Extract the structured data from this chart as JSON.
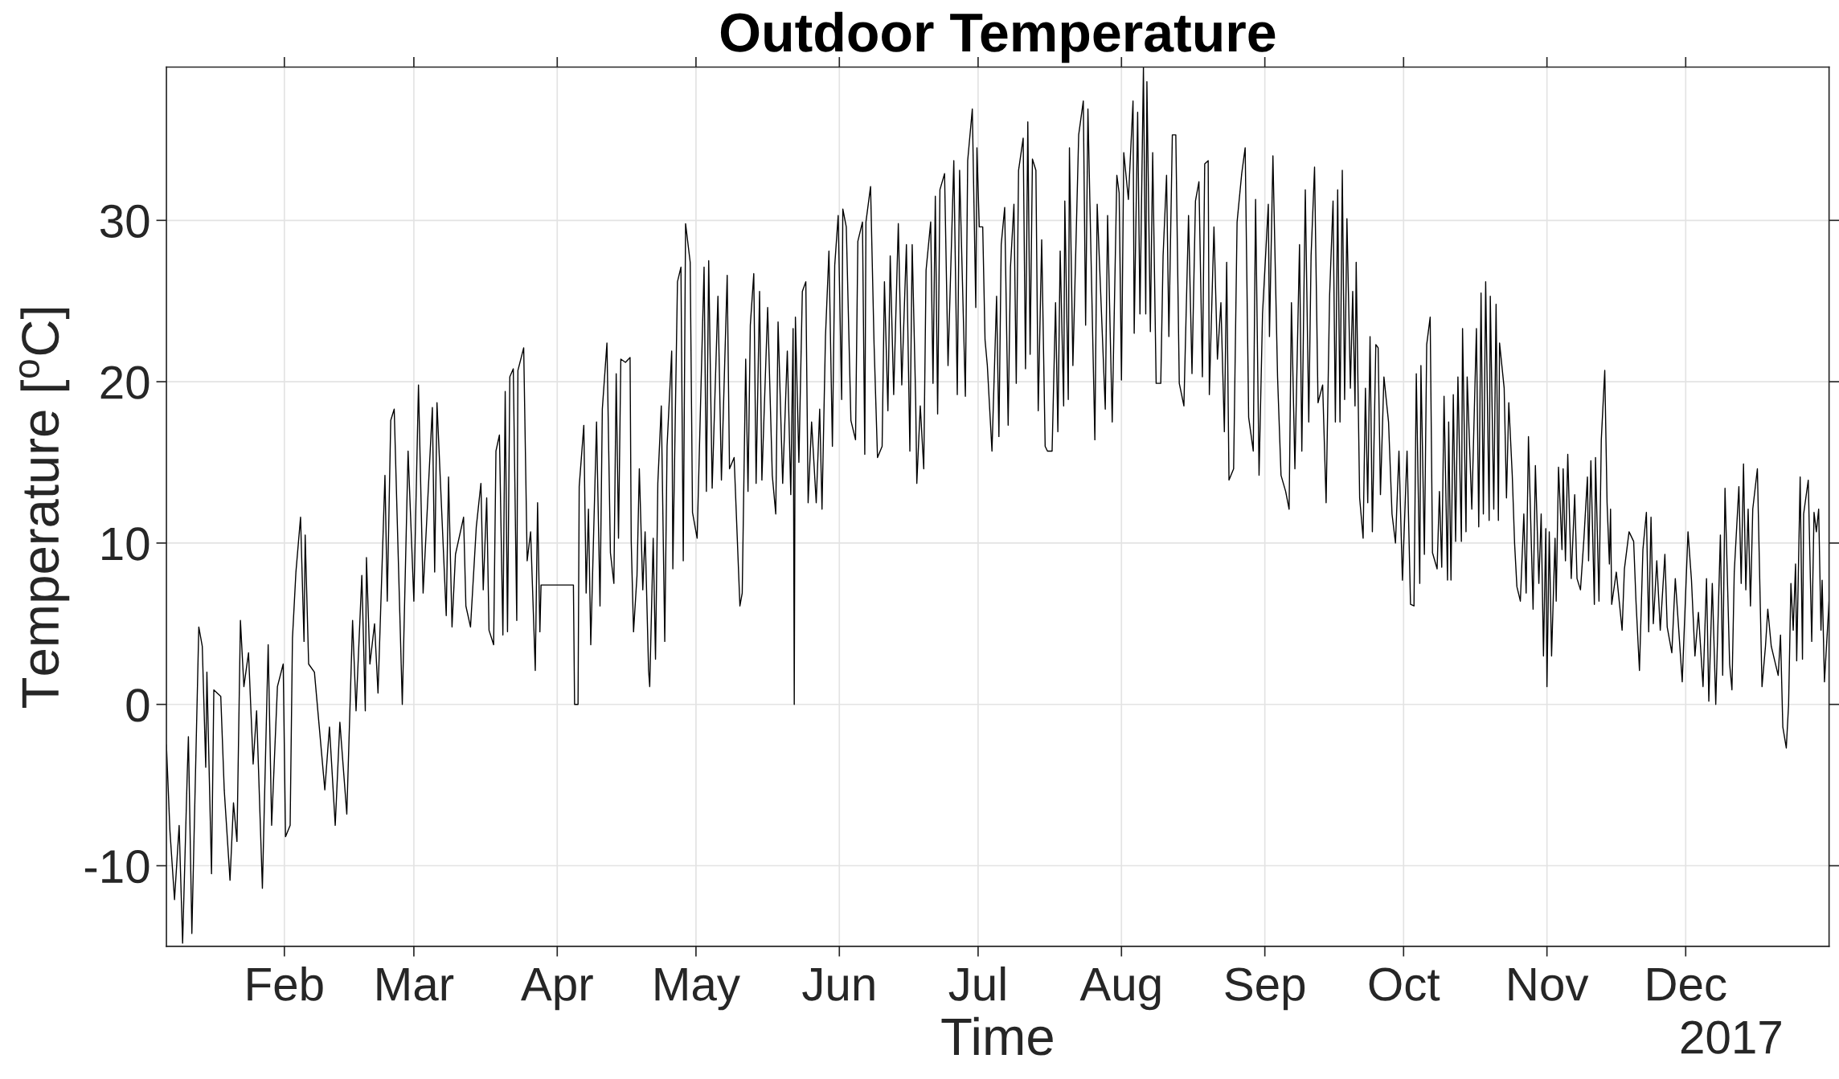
{
  "chart_data": {
    "type": "line",
    "title": "Outdoor Temperature",
    "xlabel": "Time",
    "ylabel": "Temperature [$^{o}$C]",
    "annotations": [
      "2017"
    ],
    "xlim": [
      "2017-01-06T12:00",
      "2018-01-01T00:00"
    ],
    "xticks": [
      {
        "value": "2017-02-01",
        "label": "Feb"
      },
      {
        "value": "2017-03-01",
        "label": "Mar"
      },
      {
        "value": "2017-04-01",
        "label": "Apr"
      },
      {
        "value": "2017-05-01",
        "label": "May"
      },
      {
        "value": "2017-06-01",
        "label": "Jun"
      },
      {
        "value": "2017-07-01",
        "label": "Jul"
      },
      {
        "value": "2017-08-01",
        "label": "Aug"
      },
      {
        "value": "2017-09-01",
        "label": "Sep"
      },
      {
        "value": "2017-10-01",
        "label": "Oct"
      },
      {
        "value": "2017-11-01",
        "label": "Nov"
      },
      {
        "value": "2017-12-01",
        "label": "Dec"
      }
    ],
    "ylim": [
      -15,
      39.5
    ],
    "yticks": [
      -10,
      0,
      10,
      20,
      30
    ],
    "grid": true,
    "line_style": "solid",
    "x": [
      "2017-01-06T12:00",
      "2017-01-07T06:00",
      "2017-01-08T06:00",
      "2017-01-09T06:00",
      "2017-01-10T00:00",
      "2017-01-11T00:00",
      "2017-01-11T06:00",
      "2017-01-12T00:00",
      "2017-01-13T12:00",
      "2017-01-14T06:00",
      "2017-01-15T00:00",
      "2017-01-15T06:00",
      "2017-01-16T06:00",
      "2017-01-16T18:00",
      "2017-01-18T06:00",
      "2017-01-19T00:00",
      "2017-01-20T06:00",
      "2017-01-21T00:00",
      "2017-01-21T18:00",
      "2017-01-22T12:00",
      "2017-01-23T06:00",
      "2017-01-24T06:00",
      "2017-01-25T06:00",
      "2017-01-26T00:00",
      "2017-01-27T06:00",
      "2017-01-28T12:00",
      "2017-01-29T06:00",
      "2017-01-30T12:00",
      "2017-01-31T18:00",
      "2017-02-01T06:00",
      "2017-02-02T06:00",
      "2017-02-02T18:00",
      "2017-02-03T12:00",
      "2017-02-04T12:00",
      "2017-02-05T06:00",
      "2017-02-05T12:00",
      "2017-02-06T06:00",
      "2017-02-07T12:00",
      "2017-02-09T18:00",
      "2017-02-10T18:00",
      "2017-02-12T00:00",
      "2017-02-13T00:00",
      "2017-02-14T12:00",
      "2017-02-15T18:00",
      "2017-02-16T12:00",
      "2017-02-17T18:00",
      "2017-02-18T12:00",
      "2017-02-18T18:00",
      "2017-02-19T12:00",
      "2017-02-20T12:00",
      "2017-02-21T06:00",
      "2017-02-22T18:00",
      "2017-02-23T06:00",
      "2017-02-24T00:00",
      "2017-02-24T18:00",
      "2017-02-26T12:00",
      "2017-02-27T18:00",
      "2017-03-01T00:00",
      "2017-03-02T00:00",
      "2017-03-03T00:00",
      "2017-03-05T00:00",
      "2017-03-05T12:00",
      "2017-03-06T00:00",
      "2017-03-08T00:00",
      "2017-03-08T12:00",
      "2017-03-09T06:00",
      "2017-03-10T00:00",
      "2017-03-11T18:00",
      "2017-03-12T06:00",
      "2017-03-13T06:00",
      "2017-03-14T12:00",
      "2017-03-15T12:00",
      "2017-03-16T00:00",
      "2017-03-16T18:00",
      "2017-03-17T06:00",
      "2017-03-18T06:00",
      "2017-03-18T18:00",
      "2017-03-19T12:00",
      "2017-03-20T06:00",
      "2017-03-20T18:00",
      "2017-03-21T06:00",
      "2017-03-21T18:00",
      "2017-03-22T12:00",
      "2017-03-23T06:00",
      "2017-03-23T12:00",
      "2017-03-24T18:00",
      "2017-03-25T12:00",
      "2017-03-26T06:00",
      "2017-03-27T00:00",
      "2017-03-27T06:00",
      "2017-03-27T18:00",
      "2017-03-28T06:00",
      "2017-03-28T12:00",
      "2017-04-04T12:00",
      "2017-04-04T18:00",
      "2017-04-05T12:00",
      "2017-04-05T18:00",
      "2017-04-06T18:00",
      "2017-04-07T06:00",
      "2017-04-07T18:00",
      "2017-04-08T06:00",
      "2017-04-09T12:00",
      "2017-04-10T06:00",
      "2017-04-10T18:00",
      "2017-04-11T18:00",
      "2017-04-12T12:00",
      "2017-04-13T06:00",
      "2017-04-13T18:00",
      "2017-04-14T06:00",
      "2017-04-14T18:00",
      "2017-04-15T18:00",
      "2017-04-16T18:00",
      "2017-04-17T00:00",
      "2017-04-17T12:00",
      "2017-04-18T06:00",
      "2017-04-18T18:00",
      "2017-04-19T12:00",
      "2017-04-20T00:00",
      "2017-04-20T18:00",
      "2017-04-21T00:00",
      "2017-04-21T18:00",
      "2017-04-22T06:00",
      "2017-04-22T18:00",
      "2017-04-23T12:00",
      "2017-04-24T06:00",
      "2017-04-24T18:00",
      "2017-04-25T18:00",
      "2017-04-26T00:00",
      "2017-04-27T00:00",
      "2017-04-27T18:00",
      "2017-04-28T06:00",
      "2017-04-28T18:00",
      "2017-04-29T18:00",
      "2017-04-30T06:00",
      "2017-05-01T06:00",
      "2017-05-02T18:00",
      "2017-05-03T06:00",
      "2017-05-03T18:00",
      "2017-05-04T12:00",
      "2017-05-05T18:00",
      "2017-05-06T12:00",
      "2017-05-07T18:00",
      "2017-05-08T06:00",
      "2017-05-09T06:00",
      "2017-05-10T12:00",
      "2017-05-11T00:00",
      "2017-05-11T18:00",
      "2017-05-12T06:00",
      "2017-05-12T18:00",
      "2017-05-13T12:00",
      "2017-05-14T00:00",
      "2017-05-14T18:00",
      "2017-05-15T06:00",
      "2017-05-16T12:00",
      "2017-05-17T12:00",
      "2017-05-18T06:00",
      "2017-05-18T18:00",
      "2017-05-19T18:00",
      "2017-05-20T18:00",
      "2017-05-21T12:00",
      "2017-05-22T00:00",
      "2017-05-22T06:00",
      "2017-05-22T12:00",
      "2017-05-23T06:00",
      "2017-05-24T00:00",
      "2017-05-24T18:00",
      "2017-05-25T06:00",
      "2017-05-26T00:00",
      "2017-05-27T00:00",
      "2017-05-27T18:00",
      "2017-05-28T06:00",
      "2017-05-29T00:00",
      "2017-05-29T18:00",
      "2017-05-30T12:00",
      "2017-05-31T00:00",
      "2017-05-31T18:00",
      "2017-06-01T12:00",
      "2017-06-01T18:00",
      "2017-06-02T12:00",
      "2017-06-03T12:00",
      "2017-06-04T12:00",
      "2017-06-05T00:00",
      "2017-06-06T00:00",
      "2017-06-06T12:00",
      "2017-06-06T18:00",
      "2017-06-07T18:00",
      "2017-06-08T12:00",
      "2017-06-09T06:00",
      "2017-06-10T06:00",
      "2017-06-10T18:00",
      "2017-06-11T12:00",
      "2017-06-12T00:00",
      "2017-06-12T18:00",
      "2017-06-13T18:00",
      "2017-06-14T12:00",
      "2017-06-15T12:00",
      "2017-06-16T06:00",
      "2017-06-16T18:00",
      "2017-06-17T12:00",
      "2017-06-17T18:00",
      "2017-06-18T12:00",
      "2017-06-19T06:00",
      "2017-06-19T18:00",
      "2017-06-20T18:00",
      "2017-06-21T06:00",
      "2017-06-21T18:00",
      "2017-06-22T06:00",
      "2017-06-22T18:00",
      "2017-06-23T18:00",
      "2017-06-24T12:00",
      "2017-06-25T18:00",
      "2017-06-26T12:00",
      "2017-06-27T00:00",
      "2017-06-28T06:00",
      "2017-06-28T18:00",
      "2017-06-29T18:00",
      "2017-06-30T12:00",
      "2017-06-30T18:00",
      "2017-07-01T06:00",
      "2017-07-02T00:00",
      "2017-07-02T12:00",
      "2017-07-03T00:00",
      "2017-07-04T00:00",
      "2017-07-05T00:00",
      "2017-07-05T12:00",
      "2017-07-06T00:00",
      "2017-07-06T18:00",
      "2017-07-07T12:00",
      "2017-07-08T00:00",
      "2017-07-08T18:00",
      "2017-07-09T06:00",
      "2017-07-09T18:00",
      "2017-07-10T18:00",
      "2017-07-11T06:00",
      "2017-07-11T18:00",
      "2017-07-12T06:00",
      "2017-07-12T18:00",
      "2017-07-13T12:00",
      "2017-07-14T00:00",
      "2017-07-14T18:00",
      "2017-07-15T12:00",
      "2017-07-16T00:00",
      "2017-07-17T00:00",
      "2017-07-17T18:00",
      "2017-07-18T06:00",
      "2017-07-18T18:00",
      "2017-07-19T12:00",
      "2017-07-19T18:00",
      "2017-07-20T12:00",
      "2017-07-20T18:00",
      "2017-07-21T12:00",
      "2017-07-22T18:00",
      "2017-07-23T18:00",
      "2017-07-24T06:00",
      "2017-07-24T18:00",
      "2017-07-26T06:00",
      "2017-07-26T18:00",
      "2017-07-28T12:00",
      "2017-07-29T00:00",
      "2017-07-30T00:00",
      "2017-07-31T00:00",
      "2017-07-31T12:00",
      "2017-08-01T00:00",
      "2017-08-01T12:00",
      "2017-08-02T12:00",
      "2017-08-03T12:00",
      "2017-08-03T18:00",
      "2017-08-04T12:00",
      "2017-08-05T00:00",
      "2017-08-05T18:00",
      "2017-08-06T06:00",
      "2017-08-06T12:00",
      "2017-08-07T06:00",
      "2017-08-07T18:00",
      "2017-08-08T12:00",
      "2017-08-09T12:00",
      "2017-08-10T00:00",
      "2017-08-10T18:00",
      "2017-08-11T06:00",
      "2017-08-12T00:00",
      "2017-08-12T18:00",
      "2017-08-13T12:00",
      "2017-08-14T12:00",
      "2017-08-15T12:00",
      "2017-08-16T06:00",
      "2017-08-17T00:00",
      "2017-08-17T18:00",
      "2017-08-18T12:00",
      "2017-08-19T00:00",
      "2017-08-19T18:00",
      "2017-08-20T00:00",
      "2017-08-21T00:00",
      "2017-08-21T18:00",
      "2017-08-22T12:00",
      "2017-08-23T06:00",
      "2017-08-23T18:00",
      "2017-08-24T06:00",
      "2017-08-25T06:00",
      "2017-08-26T00:00",
      "2017-08-27T00:00",
      "2017-08-27T18:00",
      "2017-08-28T12:00",
      "2017-08-29T12:00",
      "2017-08-30T00:00",
      "2017-08-30T18:00",
      "2017-08-31T12:00",
      "2017-09-01T18:00",
      "2017-09-02T00:00",
      "2017-09-02T18:00",
      "2017-09-03T18:00",
      "2017-09-04T12:00",
      "2017-09-05T12:00",
      "2017-09-06T06:00",
      "2017-09-06T18:00",
      "2017-09-07T12:00",
      "2017-09-08T12:00",
      "2017-09-09T00:00",
      "2017-09-09T18:00",
      "2017-09-10T12:00",
      "2017-09-11T00:00",
      "2017-09-11T18:00",
      "2017-09-12T12:00",
      "2017-09-13T12:00",
      "2017-09-14T06:00",
      "2017-09-15T00:00",
      "2017-09-15T18:00",
      "2017-09-16T06:00",
      "2017-09-16T18:00",
      "2017-09-17T06:00",
      "2017-09-17T18:00",
      "2017-09-18T06:00",
      "2017-09-18T18:00",
      "2017-09-19T12:00",
      "2017-09-20T00:00",
      "2017-09-20T12:00",
      "2017-09-20T18:00",
      "2017-09-21T12:00",
      "2017-09-22T06:00",
      "2017-09-22T18:00",
      "2017-09-23T06:00",
      "2017-09-23T18:00",
      "2017-09-24T06:00",
      "2017-09-25T00:00",
      "2017-09-25T12:00",
      "2017-09-26T00:00",
      "2017-09-26T18:00",
      "2017-09-27T18:00",
      "2017-09-28T12:00",
      "2017-09-29T06:00",
      "2017-09-30T00:00",
      "2017-09-30T18:00",
      "2017-10-01T18:00",
      "2017-10-02T12:00",
      "2017-10-03T06:00",
      "2017-10-03T18:00",
      "2017-10-04T12:00",
      "2017-10-04T18:00",
      "2017-10-05T12:00",
      "2017-10-06T00:00",
      "2017-10-06T18:00",
      "2017-10-07T06:00",
      "2017-10-08T06:00",
      "2017-10-08T18:00",
      "2017-10-09T06:00",
      "2017-10-09T18:00",
      "2017-10-10T12:00",
      "2017-10-10T18:00",
      "2017-10-11T06:00",
      "2017-10-11T18:00",
      "2017-10-12T06:00",
      "2017-10-12T18:00",
      "2017-10-13T12:00",
      "2017-10-13T18:00",
      "2017-10-14T12:00",
      "2017-10-14T18:00",
      "2017-10-15T18:00",
      "2017-10-16T18:00",
      "2017-10-17T06:00",
      "2017-10-17T18:00",
      "2017-10-18T06:00",
      "2017-10-18T18:00",
      "2017-10-19T12:00",
      "2017-10-19T18:00",
      "2017-10-20T12:00",
      "2017-10-21T00:00",
      "2017-10-21T12:00",
      "2017-10-21T18:00",
      "2017-10-22T18:00",
      "2017-10-23T06:00",
      "2017-10-23T18:00",
      "2017-10-24T12:00",
      "2017-10-25T00:00",
      "2017-10-25T12:00",
      "2017-10-26T06:00",
      "2017-10-27T00:00",
      "2017-10-27T12:00",
      "2017-10-28T00:00",
      "2017-10-29T00:00",
      "2017-10-29T12:00",
      "2017-10-30T06:00",
      "2017-10-30T18:00",
      "2017-10-31T06:00",
      "2017-10-31T18:00",
      "2017-11-01T00:00",
      "2017-11-01T12:00",
      "2017-11-02T00:00",
      "2017-11-02T18:00",
      "2017-11-03T00:00",
      "2017-11-03T12:00",
      "2017-11-04T06:00",
      "2017-11-04T12:00",
      "2017-11-05T00:00",
      "2017-11-05T12:00",
      "2017-11-06T06:00",
      "2017-11-07T00:00",
      "2017-11-07T12:00",
      "2017-11-08T06:00",
      "2017-11-09T00:00",
      "2017-11-09T18:00",
      "2017-11-10T00:00",
      "2017-11-10T12:00",
      "2017-11-11T06:00",
      "2017-11-11T12:00",
      "2017-11-12T06:00",
      "2017-11-12T18:00",
      "2017-11-13T12:00",
      "2017-11-14T00:00",
      "2017-11-14T12:00",
      "2017-11-14T18:00",
      "2017-11-15T00:00",
      "2017-11-16T00:00",
      "2017-11-17T06:00",
      "2017-11-17T18:00",
      "2017-11-18T18:00",
      "2017-11-19T18:00",
      "2017-11-20T06:00",
      "2017-11-21T00:00",
      "2017-11-21T18:00",
      "2017-11-22T12:00",
      "2017-11-23T00:00",
      "2017-11-23T12:00",
      "2017-11-24T00:00",
      "2017-11-24T18:00",
      "2017-11-25T12:00",
      "2017-11-26T12:00",
      "2017-11-27T00:00",
      "2017-11-28T00:00",
      "2017-11-28T18:00",
      "2017-11-30T06:00",
      "2017-12-01T12:00",
      "2017-12-02T06:00",
      "2017-12-03T00:00",
      "2017-12-03T18:00",
      "2017-12-04T18:00",
      "2017-12-05T12:00",
      "2017-12-06T00:00",
      "2017-12-06T18:00",
      "2017-12-07T12:00",
      "2017-12-08T12:00",
      "2017-12-09T00:00",
      "2017-12-09T12:00",
      "2017-12-10T12:00",
      "2017-12-11T00:00",
      "2017-12-11T12:00",
      "2017-12-12T12:00",
      "2017-12-13T00:00",
      "2017-12-13T12:00",
      "2017-12-14T00:00",
      "2017-12-14T12:00",
      "2017-12-15T00:00",
      "2017-12-15T12:00",
      "2017-12-16T12:00",
      "2017-12-17T12:00",
      "2017-12-18T06:00",
      "2017-12-18T18:00",
      "2017-12-19T12:00",
      "2017-12-21T00:00",
      "2017-12-21T12:00",
      "2017-12-22T00:00",
      "2017-12-22T18:00",
      "2017-12-23T06:00",
      "2017-12-23T18:00",
      "2017-12-24T06:00",
      "2017-12-24T18:00",
      "2017-12-25T00:00",
      "2017-12-25T18:00",
      "2017-12-26T06:00",
      "2017-12-26T12:00",
      "2017-12-27T12:00",
      "2017-12-28T06:00",
      "2017-12-28T18:00",
      "2017-12-29T06:00",
      "2017-12-29T18:00",
      "2017-12-30T06:00",
      "2017-12-30T12:00",
      "2017-12-31T00:00",
      "2018-01-01T00:00"
    ],
    "series": [
      {
        "color": "#000000",
        "values": [
          -2.5,
          -7.8,
          -12.1,
          -7.5,
          -14.8,
          -4.3,
          -2.0,
          -14.2,
          4.8,
          3.6,
          -3.9,
          2.0,
          -10.5,
          0.9,
          0.5,
          -5.3,
          -10.9,
          -6.1,
          -8.5,
          5.2,
          1.1,
          3.2,
          -3.7,
          -0.4,
          -11.4,
          3.7,
          -7.5,
          1.1,
          2.5,
          -8.2,
          -7.5,
          4.1,
          8.2,
          11.6,
          3.9,
          10.5,
          2.5,
          2.0,
          -5.3,
          -1.4,
          -7.5,
          -1.1,
          -6.8,
          5.2,
          -0.4,
          8.0,
          -0.4,
          9.1,
          2.5,
          5.0,
          0.7,
          14.2,
          6.4,
          17.6,
          18.3,
          0.0,
          15.7,
          6.4,
          19.8,
          6.9,
          18.4,
          8.2,
          18.7,
          5.5,
          14.1,
          4.8,
          9.3,
          11.6,
          6.1,
          4.8,
          11.0,
          13.7,
          7.1,
          12.8,
          4.6,
          3.7,
          15.7,
          16.7,
          4.3,
          19.4,
          4.5,
          20.3,
          20.8,
          5.2,
          20.7,
          22.1,
          8.9,
          10.7,
          4.3,
          2.1,
          12.5,
          4.5,
          7.4,
          7.4,
          0.0,
          0.0,
          13.5,
          17.3,
          6.9,
          12.1,
          3.7,
          17.5,
          6.1,
          18.3,
          22.4,
          9.4,
          7.5,
          20.5,
          10.3,
          21.4,
          21.2,
          21.5,
          10.1,
          4.5,
          8.0,
          14.6,
          7.1,
          10.7,
          2.1,
          1.1,
          10.3,
          2.8,
          13.7,
          18.5,
          3.9,
          16.0,
          21.9,
          8.4,
          26.2,
          27.1,
          8.9,
          29.8,
          27.4,
          11.9,
          10.3,
          27.1,
          13.2,
          27.5,
          13.4,
          25.3,
          13.9,
          26.6,
          14.6,
          15.3,
          6.1,
          6.9,
          21.4,
          13.2,
          23.5,
          26.7,
          13.7,
          25.6,
          13.9,
          24.6,
          14.2,
          11.8,
          23.7,
          13.7,
          21.9,
          13.0,
          23.3,
          0.0,
          24.0,
          15.0,
          25.6,
          26.2,
          12.5,
          17.5,
          12.5,
          18.3,
          12.1,
          22.8,
          28.1,
          16.0,
          27.2,
          30.3,
          18.9,
          30.7,
          29.6,
          17.6,
          16.4,
          28.7,
          29.9,
          15.5,
          29.9,
          32.1,
          22.4,
          15.3,
          16.0,
          26.2,
          18.2,
          27.8,
          19.2,
          29.8,
          19.8,
          28.5,
          15.7,
          28.5,
          18.9,
          13.7,
          18.5,
          14.6,
          26.9,
          29.9,
          19.9,
          31.5,
          18.0,
          31.9,
          32.9,
          21.0,
          33.7,
          19.2,
          33.1,
          19.1,
          33.7,
          36.9,
          24.6,
          34.5,
          29.6,
          29.6,
          22.6,
          21.0,
          15.7,
          25.3,
          16.6,
          28.5,
          30.8,
          17.3,
          27.1,
          31.0,
          19.9,
          33.1,
          35.1,
          20.8,
          36.1,
          21.7,
          33.8,
          33.1,
          18.2,
          28.8,
          16.0,
          15.7,
          15.7,
          24.9,
          16.9,
          28.1,
          18.5,
          31.2,
          18.9,
          34.5,
          21.0,
          35.3,
          37.4,
          23.5,
          36.9,
          16.4,
          31.0,
          18.3,
          30.3,
          17.5,
          32.8,
          31.7,
          20.1,
          34.2,
          31.3,
          37.4,
          23.0,
          36.7,
          24.2,
          39.5,
          24.2,
          38.6,
          23.1,
          34.2,
          19.9,
          19.9,
          27.8,
          32.8,
          22.8,
          35.3,
          35.3,
          19.9,
          18.5,
          30.3,
          20.5,
          31.2,
          32.4,
          20.3,
          33.5,
          33.7,
          19.2,
          29.6,
          21.4,
          24.9,
          16.9,
          27.4,
          13.9,
          14.6,
          29.9,
          32.9,
          34.5,
          17.8,
          15.7,
          31.3,
          14.2,
          24.2,
          31.0,
          22.8,
          34.0,
          20.3,
          14.2,
          13.2,
          12.1,
          24.9,
          14.6,
          28.5,
          15.7,
          31.9,
          17.5,
          27.8,
          33.3,
          18.7,
          19.8,
          12.5,
          25.3,
          31.2,
          17.5,
          31.9,
          17.5,
          33.1,
          18.9,
          30.1,
          19.6,
          25.6,
          18.5,
          27.4,
          12.8,
          10.3,
          19.6,
          12.5,
          22.8,
          10.7,
          22.3,
          22.1,
          13.0,
          20.3,
          17.5,
          11.8,
          10.0,
          15.7,
          7.7,
          15.7,
          6.2,
          6.1,
          20.5,
          7.5,
          21.0,
          9.3,
          22.3,
          24.0,
          9.4,
          8.4,
          13.2,
          8.5,
          19.1,
          7.7,
          17.5,
          7.7,
          19.2,
          10.1,
          20.3,
          10.1,
          23.3,
          10.7,
          20.3,
          12.1,
          23.3,
          11.0,
          25.5,
          11.8,
          26.2,
          11.4,
          25.3,
          12.1,
          24.8,
          11.4,
          22.4,
          19.6,
          12.8,
          18.7,
          14.2,
          10.0,
          7.3,
          6.4,
          11.8,
          6.9,
          16.6,
          5.9,
          14.8,
          7.5,
          11.8,
          3.0,
          10.9,
          1.1,
          10.7,
          3.0,
          10.3,
          6.4,
          14.7,
          9.6,
          14.6,
          8.9,
          15.5,
          7.8,
          13.0,
          7.8,
          7.1,
          10.3,
          14.1,
          8.9,
          15.1,
          6.2,
          15.3,
          6.4,
          16.4,
          20.7,
          12.5,
          8.7,
          12.1,
          6.2,
          8.2,
          4.6,
          8.4,
          10.7,
          10.1,
          6.4,
          2.1,
          9.6,
          11.9,
          4.5,
          11.6,
          5.0,
          8.9,
          4.6,
          9.3,
          4.8,
          3.2,
          7.8,
          1.4,
          10.7,
          7.7,
          3.0,
          5.7,
          1.1,
          7.8,
          0.2,
          7.5,
          0.0,
          10.5,
          1.8,
          13.4,
          2.5,
          0.9,
          8.2,
          13.5,
          7.5,
          14.9,
          7.1,
          12.1,
          6.1,
          12.1,
          14.6,
          1.1,
          3.6,
          5.9,
          3.6,
          1.8,
          4.3,
          -1.4,
          -2.7,
          0.0,
          7.5,
          4.6,
          8.7,
          2.7,
          14.1,
          2.8,
          11.8,
          13.9,
          3.9,
          11.9,
          10.7,
          12.1,
          4.6,
          7.7,
          1.4,
          6.4
        ]
      }
    ]
  }
}
